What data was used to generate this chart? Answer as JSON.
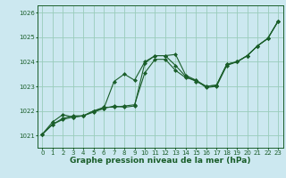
{
  "title": "Graphe pression niveau de la mer (hPa)",
  "bg_color": "#cce8f0",
  "grid_color": "#99ccbb",
  "line_color": "#1a5e2a",
  "xlim": [
    -0.5,
    23.5
  ],
  "ylim": [
    1020.5,
    1026.3
  ],
  "xticks": [
    0,
    1,
    2,
    3,
    4,
    5,
    6,
    7,
    8,
    9,
    10,
    11,
    12,
    13,
    14,
    15,
    16,
    17,
    18,
    19,
    20,
    21,
    22,
    23
  ],
  "yticks": [
    1021,
    1022,
    1023,
    1024,
    1025,
    1026
  ],
  "series1": [
    1021.05,
    1021.55,
    1021.85,
    1021.75,
    1021.8,
    1022.0,
    1022.15,
    1022.15,
    1022.2,
    1022.25,
    1023.55,
    1024.1,
    1024.1,
    1023.65,
    1023.35,
    1023.25,
    1023.0,
    1023.05,
    1023.9,
    1024.0,
    1024.25,
    1024.65,
    1024.95,
    1025.65
  ],
  "series2": [
    1021.05,
    1021.45,
    1021.7,
    1021.8,
    1021.8,
    1022.0,
    1022.1,
    1022.2,
    1022.15,
    1022.2,
    1023.95,
    1024.25,
    1024.25,
    1024.3,
    1023.45,
    1023.25,
    1022.95,
    1023.0,
    1023.85,
    1024.0,
    1024.25,
    1024.65,
    1024.95,
    1025.65
  ],
  "series3": [
    1021.05,
    1021.45,
    1021.65,
    1021.75,
    1021.8,
    1021.95,
    1022.1,
    1023.2,
    1023.5,
    1023.25,
    1024.0,
    1024.25,
    1024.25,
    1023.85,
    1023.4,
    1023.2,
    1023.0,
    1023.05,
    1023.9,
    1024.0,
    1024.25,
    1024.65,
    1024.95,
    1025.65
  ],
  "tick_fontsize": 5.0,
  "xlabel_fontsize": 6.5
}
